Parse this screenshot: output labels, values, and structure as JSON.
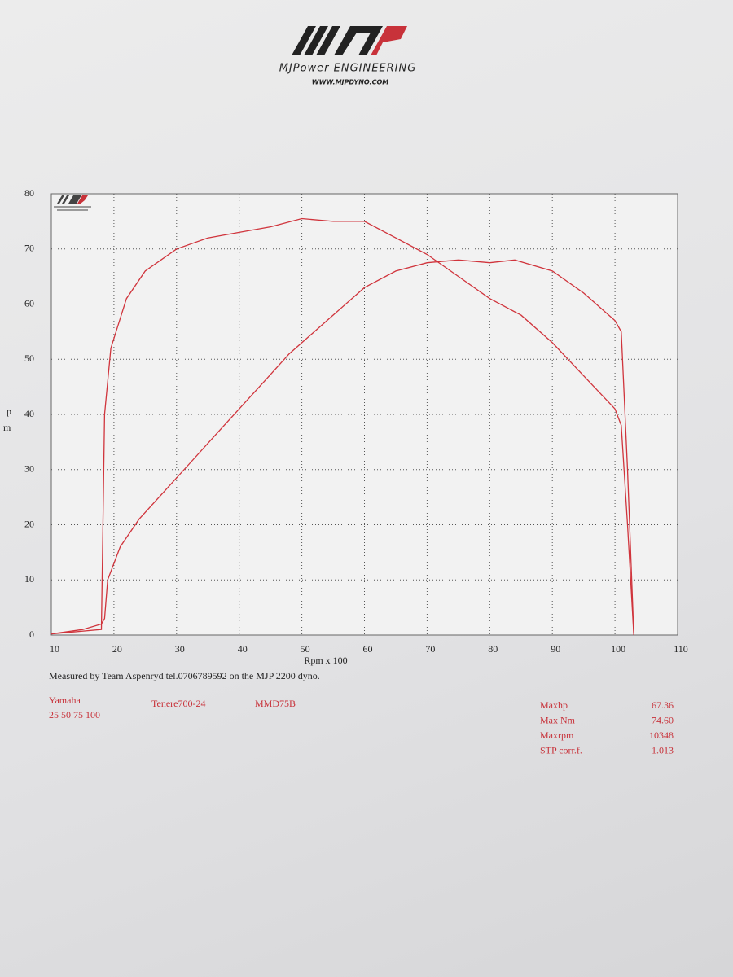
{
  "chart_data": {
    "type": "line",
    "header": {
      "company": "MJPower ENGINEERING",
      "url": "WWW.MJPDYNO.COM"
    },
    "xlabel": "Rpm x 100",
    "ylabel": [
      "p",
      "m"
    ],
    "note": "Measured by Team Aspenryd tel.0706789592 on the MJP 2200 dyno.",
    "info": {
      "make": "Yamaha",
      "gears": "25 50 75 100",
      "model": "Tenere700-24",
      "run": "MMD75B"
    },
    "stats": [
      [
        "Maxhp",
        "67.36"
      ],
      [
        "Max Nm",
        "74.60"
      ],
      [
        "Maxrpm",
        "10348"
      ],
      [
        "STP corr.f.",
        "1.013"
      ]
    ],
    "xlim": [
      10,
      110
    ],
    "ylim": [
      0,
      80
    ],
    "xticks": [
      10,
      20,
      30,
      40,
      50,
      60,
      70,
      80,
      90,
      100,
      110
    ],
    "yticks": [
      0,
      10,
      20,
      30,
      40,
      50,
      60,
      70,
      80
    ],
    "grid": true,
    "series": [
      {
        "color": "#d0343c",
        "x": [
          10,
          18,
          18.5,
          19.5,
          22,
          25,
          30,
          35,
          40,
          45,
          50,
          55,
          60,
          65,
          70,
          75,
          80,
          85,
          90,
          95,
          100,
          101,
          102,
          103
        ],
        "values": [
          0.2,
          1,
          40,
          52,
          61,
          66,
          70,
          72,
          73,
          74,
          75.5,
          75,
          75,
          72,
          69,
          65,
          61,
          58,
          53,
          47,
          41,
          38,
          20,
          0
        ]
      },
      {
        "color": "#d0343c",
        "x": [
          10,
          15,
          18,
          18.5,
          19,
          21,
          24,
          28,
          32,
          36,
          40,
          44,
          48,
          52,
          56,
          60,
          65,
          70,
          75,
          80,
          84,
          90,
          95,
          100,
          101,
          102,
          103
        ],
        "values": [
          0.2,
          1,
          2,
          3,
          10,
          16,
          21,
          26,
          31,
          36,
          41,
          46,
          51,
          55,
          59,
          63,
          66,
          67.5,
          68,
          67.5,
          68,
          66,
          62,
          57,
          55,
          30,
          0
        ]
      }
    ]
  }
}
